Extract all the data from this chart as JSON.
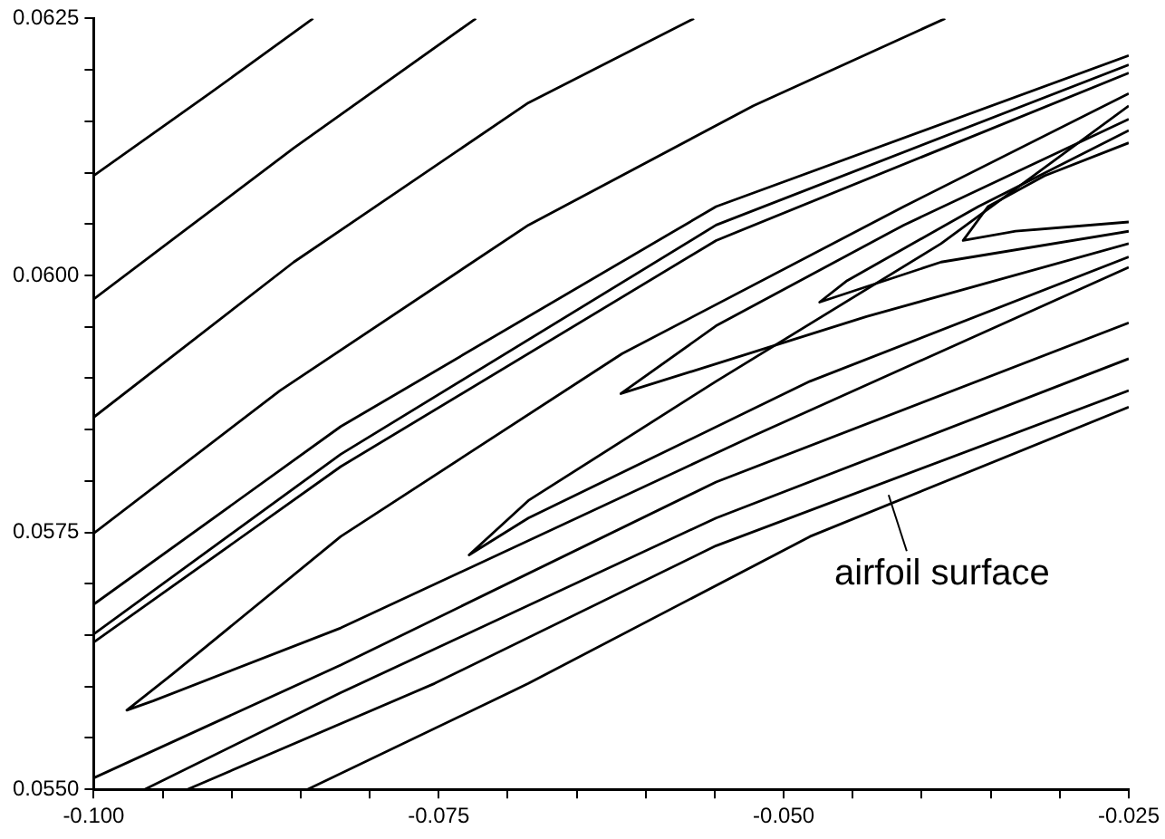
{
  "chart_data": {
    "type": "line",
    "marker": "none",
    "line_style": "solid",
    "grid": false,
    "legend": false,
    "xlim": [
      -0.1,
      -0.025
    ],
    "ylim": [
      0.055,
      0.0625
    ],
    "xticks": [
      {
        "value": -0.1,
        "label": "-0.100"
      },
      {
        "value": -0.095,
        "label": null
      },
      {
        "value": -0.09,
        "label": null
      },
      {
        "value": -0.085,
        "label": null
      },
      {
        "value": -0.08,
        "label": null
      },
      {
        "value": -0.075,
        "label": "-0.075"
      },
      {
        "value": -0.07,
        "label": null
      },
      {
        "value": -0.065,
        "label": null
      },
      {
        "value": -0.06,
        "label": null
      },
      {
        "value": -0.055,
        "label": null
      },
      {
        "value": -0.05,
        "label": "-0.050"
      },
      {
        "value": -0.045,
        "label": null
      },
      {
        "value": -0.04,
        "label": null
      },
      {
        "value": -0.035,
        "label": null
      },
      {
        "value": -0.03,
        "label": null
      },
      {
        "value": -0.025,
        "label": "-0.025"
      }
    ],
    "yticks": [
      {
        "value": 0.055,
        "label": "0.0550"
      },
      {
        "value": 0.0555,
        "label": null
      },
      {
        "value": 0.056,
        "label": null
      },
      {
        "value": 0.0565,
        "label": null
      },
      {
        "value": 0.057,
        "label": null
      },
      {
        "value": 0.0575,
        "label": "0.0575"
      },
      {
        "value": 0.058,
        "label": null
      },
      {
        "value": 0.0585,
        "label": null
      },
      {
        "value": 0.059,
        "label": null
      },
      {
        "value": 0.0595,
        "label": null
      },
      {
        "value": 0.06,
        "label": "0.0600"
      },
      {
        "value": 0.0605,
        "label": null
      },
      {
        "value": 0.061,
        "label": null
      },
      {
        "value": 0.0615,
        "label": null
      },
      {
        "value": 0.062,
        "label": null
      },
      {
        "value": 0.0625,
        "label": "0.0625"
      }
    ],
    "annotations": [
      {
        "text": "airfoil surface",
        "x": -0.0424,
        "y": 0.0579
      }
    ],
    "series": [
      {
        "color": "#000000",
        "x": [
          -0.1,
          -0.0916,
          -0.0841
        ],
        "values": [
          0.06097,
          0.06177,
          0.0625
        ]
      },
      {
        "color": "#000000",
        "x": [
          -0.1,
          -0.0855,
          -0.0723
        ],
        "values": [
          0.05977,
          0.06124,
          0.0625
        ]
      },
      {
        "color": "#000000",
        "x": [
          -0.1,
          -0.0855,
          -0.0685,
          -0.0565
        ],
        "values": [
          0.05862,
          0.06013,
          0.06168,
          0.0625
        ]
      },
      {
        "color": "#000000",
        "x": [
          -0.1,
          -0.0865,
          -0.0685,
          -0.0522,
          -0.0383
        ],
        "values": [
          0.05749,
          0.05888,
          0.06049,
          0.06165,
          0.0625
        ]
      },
      {
        "color": "#000000",
        "x": [
          -0.1,
          -0.0821,
          -0.0549,
          -0.025
        ],
        "values": [
          0.0568,
          0.05853,
          0.06067,
          0.06214
        ]
      },
      {
        "color": "#000000",
        "x": [
          -0.1,
          -0.0821,
          -0.0549,
          -0.025
        ],
        "values": [
          0.05651,
          0.05826,
          0.06049,
          0.06205
        ]
      },
      {
        "color": "#000000",
        "x": [
          -0.1,
          -0.0821,
          -0.0549,
          -0.025
        ],
        "values": [
          0.05643,
          0.05814,
          0.06034,
          0.06197
        ]
      },
      {
        "color": "#000000",
        "x": [
          -0.025,
          -0.0332,
          -0.037,
          -0.0352,
          -0.0311,
          -0.025
        ],
        "values": [
          0.06052,
          0.06043,
          0.06034,
          0.06067,
          0.06097,
          0.06129
        ]
      },
      {
        "color": "#000000",
        "x": [
          -0.025,
          -0.0386,
          -0.0474,
          -0.0454,
          -0.0359,
          -0.025
        ],
        "values": [
          0.06043,
          0.06013,
          0.05974,
          0.05995,
          0.06067,
          0.06141
        ]
      },
      {
        "color": "#000000",
        "x": [
          -0.025,
          -0.044,
          -0.0618,
          -0.0549,
          -0.0413,
          -0.025
        ],
        "values": [
          0.06031,
          0.0596,
          0.05885,
          0.05951,
          0.06049,
          0.06152
        ]
      },
      {
        "color": "#000000",
        "x": [
          -0.025,
          -0.0481,
          -0.0685,
          -0.0728,
          -0.0685,
          -0.0549,
          -0.0386,
          -0.025
        ],
        "values": [
          0.06018,
          0.05897,
          0.05764,
          0.05728,
          0.05781,
          0.05897,
          0.06031,
          0.06165
        ]
      },
      {
        "color": "#000000",
        "x": [
          -0.025,
          -0.0522,
          -0.0821,
          -0.0957,
          -0.0976,
          -0.0943,
          -0.0821,
          -0.0617,
          -0.0413,
          -0.025
        ],
        "values": [
          0.06008,
          0.05844,
          0.05657,
          0.05586,
          0.05577,
          0.05612,
          0.05746,
          0.05924,
          0.06067,
          0.06177
        ]
      },
      {
        "color": "#000000",
        "x": [
          -0.025,
          -0.0549,
          -0.0821,
          -0.1
        ],
        "values": [
          0.05954,
          0.05799,
          0.05621,
          0.05511
        ]
      },
      {
        "color": "#000000",
        "x": [
          -0.025,
          -0.0549,
          -0.0821,
          -0.0963
        ],
        "values": [
          0.05919,
          0.05764,
          0.05594,
          0.055
        ]
      },
      {
        "color": "#000000",
        "x": [
          -0.025,
          -0.0549,
          -0.0753,
          -0.0932
        ],
        "values": [
          0.05888,
          0.05737,
          0.05603,
          0.055
        ]
      },
      {
        "color": "#000000",
        "x": [
          -0.0845,
          -0.0685,
          -0.0481,
          -0.025
        ],
        "values": [
          0.055,
          0.05603,
          0.05746,
          0.05872
        ]
      }
    ]
  }
}
